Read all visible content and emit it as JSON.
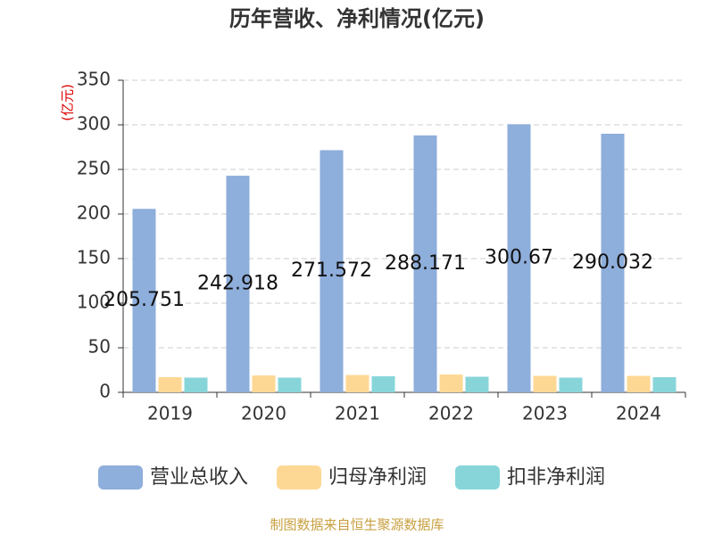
{
  "chart_data": {
    "type": "bar",
    "title": "历年营收、净利情况(亿元)",
    "y_label": "(亿元)",
    "source": "制图数据来自恒生聚源数据库",
    "categories": [
      "2019",
      "2020",
      "2021",
      "2022",
      "2023",
      "2024"
    ],
    "series": [
      {
        "name": "营业总收入",
        "color": "#8eaedb",
        "values": [
          205.751,
          242.918,
          271.572,
          288.171,
          300.67,
          290.032
        ],
        "show_labels": true
      },
      {
        "name": "归母净利润",
        "color": "#fdd895",
        "values": [
          17,
          19,
          19.5,
          20,
          18.5,
          18.5
        ]
      },
      {
        "name": "扣非净利润",
        "color": "#87d5d9",
        "values": [
          16.5,
          16.5,
          18,
          17.5,
          16.5,
          17
        ]
      }
    ],
    "ylim": [
      0,
      350
    ],
    "yticks": [
      0,
      50,
      100,
      150,
      200,
      250,
      300,
      350
    ],
    "grid": true
  }
}
